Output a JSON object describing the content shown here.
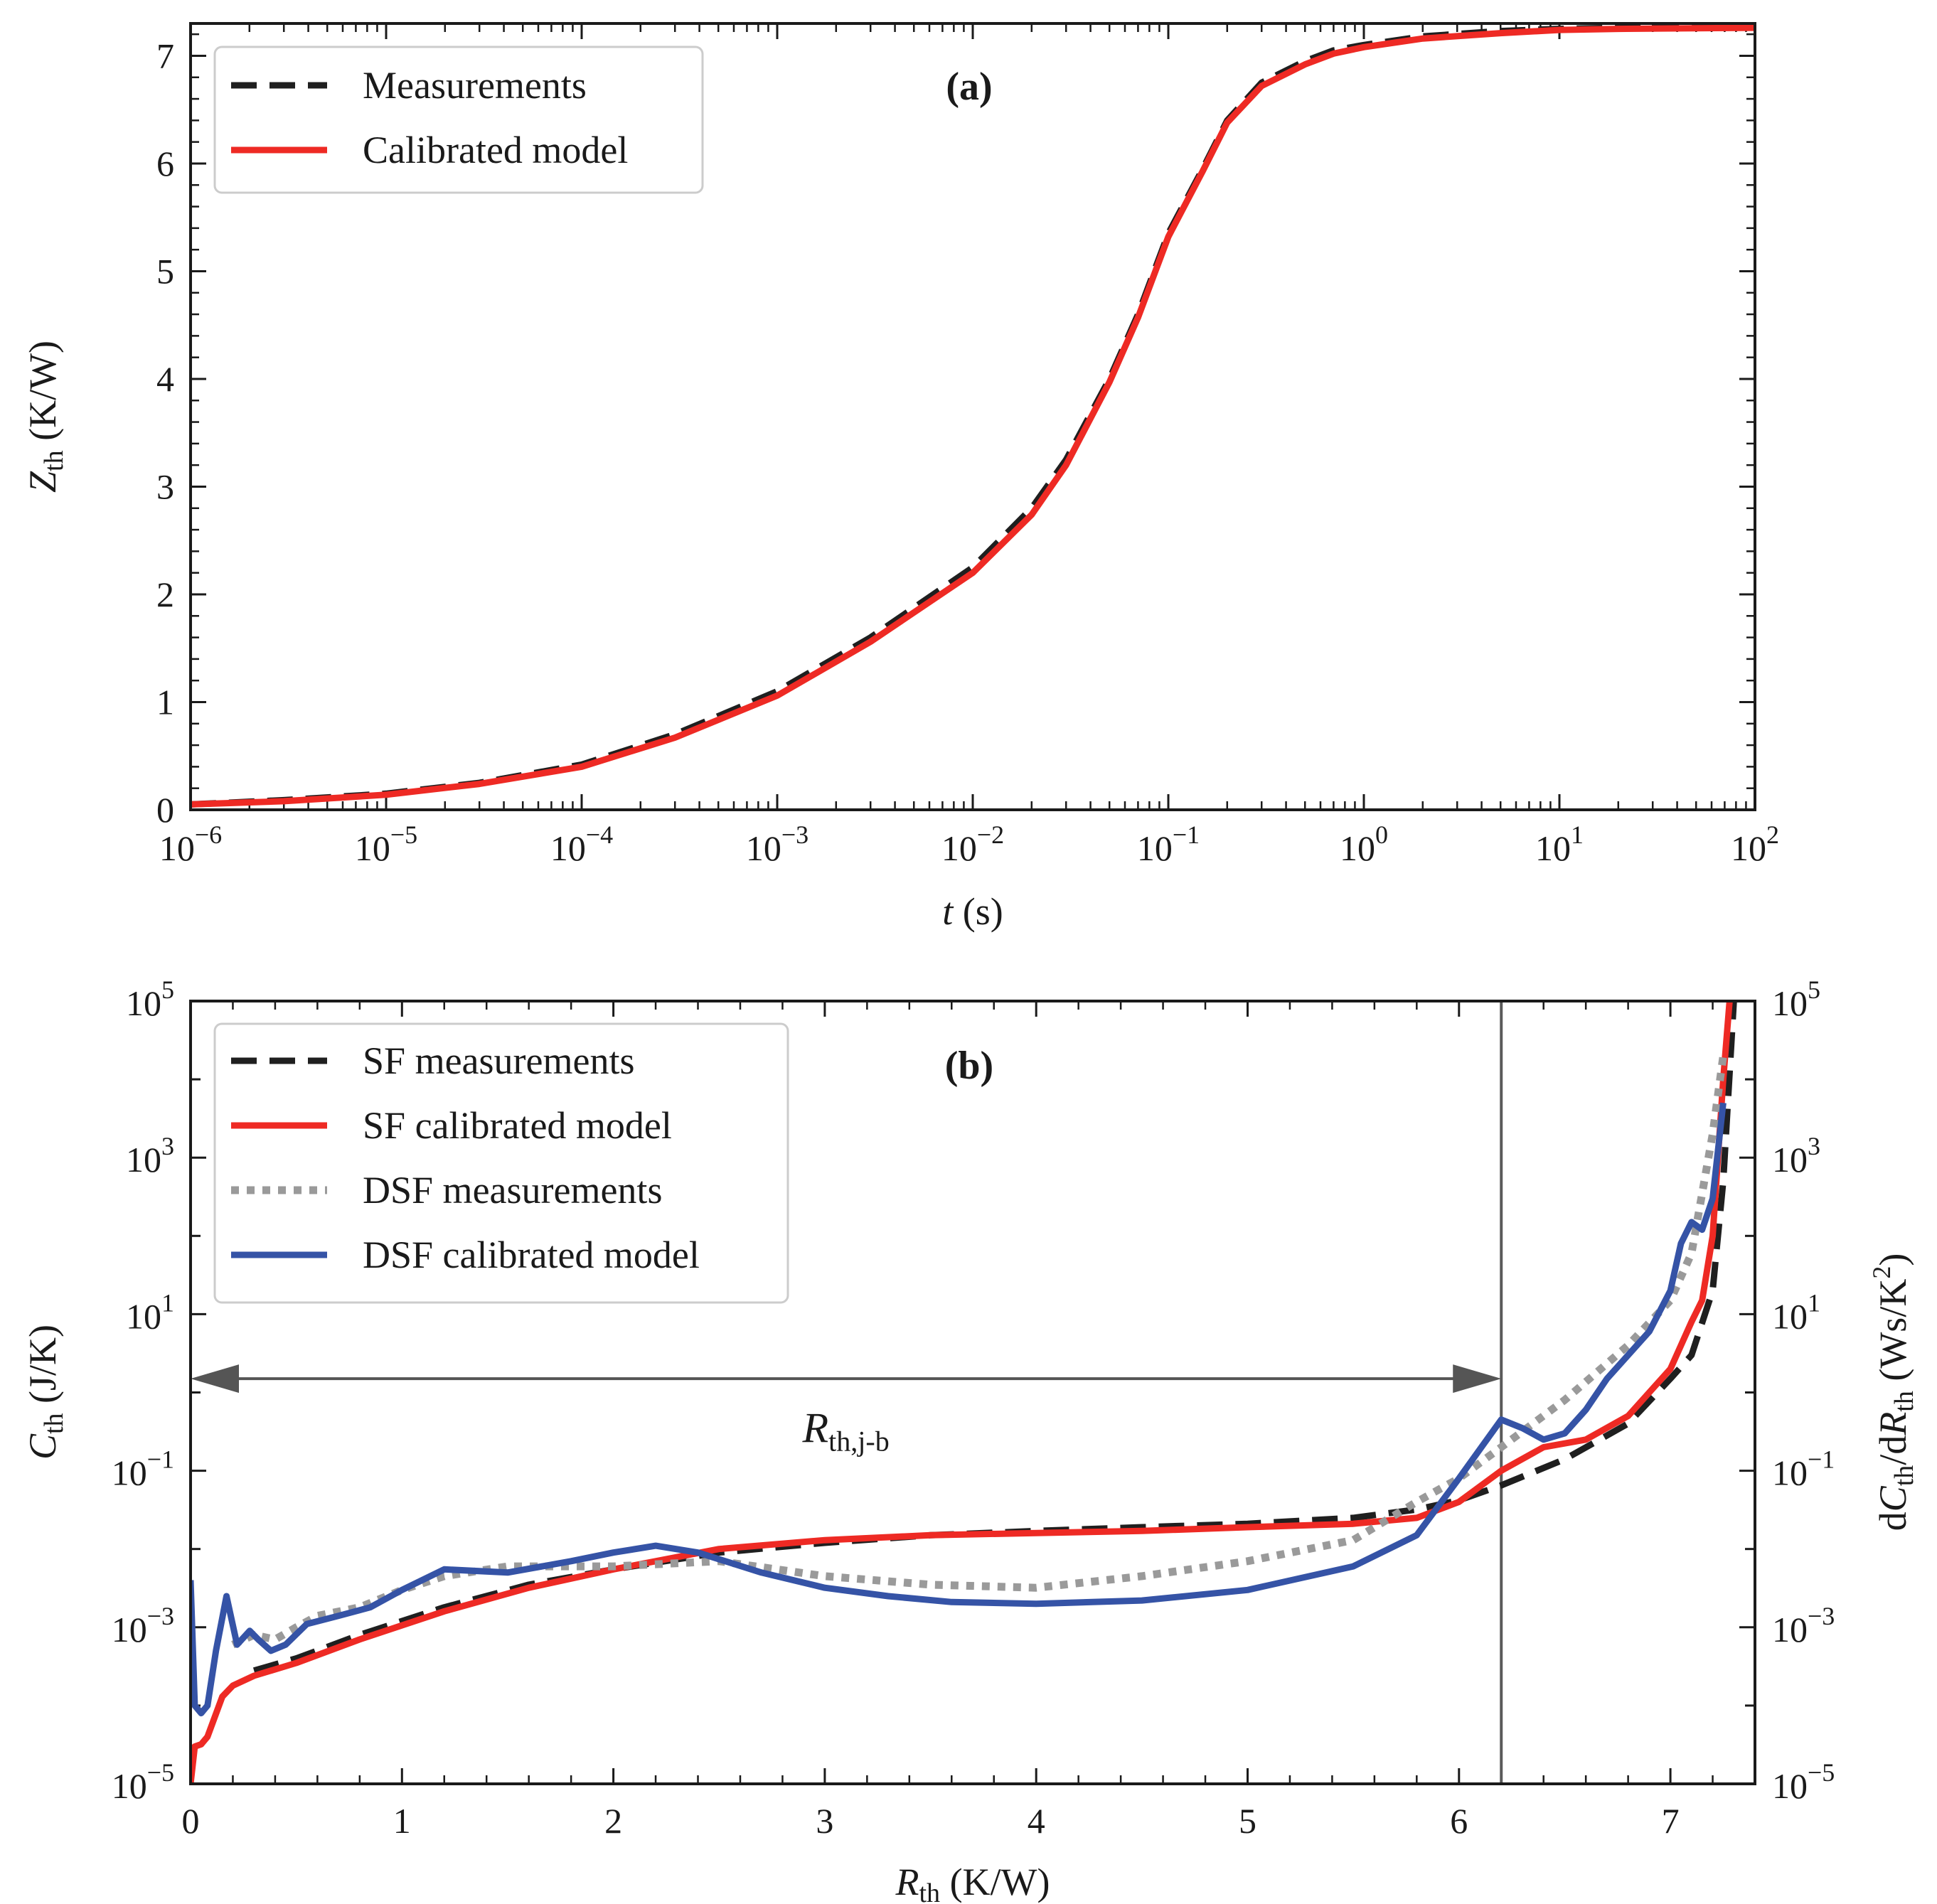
{
  "chart_data": [
    {
      "type": "line",
      "panel_label": "(a)",
      "xlabel": {
        "main": "t",
        "rest": " (s)"
      },
      "ylabel": {
        "main": "Z",
        "sub": "th",
        "rest": " (K/W)"
      },
      "xscale": "log",
      "xlim": [
        1e-06,
        100
      ],
      "ylim": [
        0,
        7.3
      ],
      "xticks": [
        {
          "value": 1e-06,
          "base": "10",
          "exp": "−6"
        },
        {
          "value": 1e-05,
          "base": "10",
          "exp": "−5"
        },
        {
          "value": 0.0001,
          "base": "10",
          "exp": "−4"
        },
        {
          "value": 0.001,
          "base": "10",
          "exp": "−3"
        },
        {
          "value": 0.01,
          "base": "10",
          "exp": "−2"
        },
        {
          "value": 0.1,
          "base": "10",
          "exp": "−1"
        },
        {
          "value": 1,
          "base": "10",
          "exp": "0"
        },
        {
          "value": 10,
          "base": "10",
          "exp": "1"
        },
        {
          "value": 100,
          "base": "10",
          "exp": "2"
        }
      ],
      "yticks": [
        {
          "value": 0,
          "label": "0"
        },
        {
          "value": 1,
          "label": "1"
        },
        {
          "value": 2,
          "label": "2"
        },
        {
          "value": 3,
          "label": "3"
        },
        {
          "value": 4,
          "label": "4"
        },
        {
          "value": 5,
          "label": "5"
        },
        {
          "value": 6,
          "label": "6"
        },
        {
          "value": 7,
          "label": "7"
        }
      ],
      "legend": {
        "placement": "top-left"
      },
      "series": [
        {
          "name": "Measurements",
          "color": "#1f1f1f",
          "style": "dashed",
          "x": [
            1e-06,
            3e-06,
            1e-05,
            3e-05,
            0.0001,
            0.0003,
            0.001,
            0.003,
            0.01,
            0.02,
            0.03,
            0.05,
            0.07,
            0.1,
            0.15,
            0.2,
            0.3,
            0.5,
            0.7,
            1,
            2,
            5,
            10,
            20,
            100
          ],
          "y": [
            0.05,
            0.09,
            0.15,
            0.25,
            0.42,
            0.7,
            1.1,
            1.6,
            2.25,
            2.8,
            3.25,
            4.0,
            4.6,
            5.35,
            5.95,
            6.4,
            6.75,
            6.95,
            7.05,
            7.1,
            7.18,
            7.23,
            7.25,
            7.26,
            7.27
          ]
        },
        {
          "name": "Calibrated model",
          "color": "#ee2a24",
          "style": "solid",
          "x": [
            1e-06,
            3e-06,
            1e-05,
            3e-05,
            0.0001,
            0.0003,
            0.001,
            0.003,
            0.01,
            0.02,
            0.03,
            0.05,
            0.07,
            0.1,
            0.15,
            0.2,
            0.3,
            0.5,
            0.7,
            1,
            2,
            5,
            10,
            20,
            100
          ],
          "y": [
            0.05,
            0.08,
            0.14,
            0.24,
            0.4,
            0.67,
            1.06,
            1.56,
            2.2,
            2.74,
            3.2,
            3.97,
            4.57,
            5.32,
            5.93,
            6.38,
            6.72,
            6.92,
            7.02,
            7.08,
            7.16,
            7.21,
            7.24,
            7.25,
            7.26
          ]
        }
      ]
    },
    {
      "type": "line",
      "panel_label": "(b)",
      "xlabel": {
        "main": "R",
        "sub": "th",
        "rest": " (K/W)"
      },
      "ylabel": {
        "main": "C",
        "sub": "th",
        "rest": " (J/K)"
      },
      "ylabel_right": {
        "p1": "d",
        "m1": "C",
        "s1": "th",
        "p2": "/d",
        "m2": "R",
        "s2": "th",
        "p3": " (Ws/K",
        "sup": "2",
        "p4": ")"
      },
      "yscale": "log",
      "xlim": [
        0,
        7.4
      ],
      "ylim": [
        1e-05,
        100000.0
      ],
      "xticks": [
        {
          "value": 0,
          "label": "0"
        },
        {
          "value": 1,
          "label": "1"
        },
        {
          "value": 2,
          "label": "2"
        },
        {
          "value": 3,
          "label": "3"
        },
        {
          "value": 4,
          "label": "4"
        },
        {
          "value": 5,
          "label": "5"
        },
        {
          "value": 6,
          "label": "6"
        },
        {
          "value": 7,
          "label": "7"
        }
      ],
      "yticks": [
        {
          "value": 1e-05,
          "base": "10",
          "exp": "−5"
        },
        {
          "value": 0.001,
          "base": "10",
          "exp": "−3"
        },
        {
          "value": 0.1,
          "base": "10",
          "exp": "−1"
        },
        {
          "value": 10,
          "base": "10",
          "exp": "1"
        },
        {
          "value": 1000,
          "base": "10",
          "exp": "3"
        },
        {
          "value": 100000,
          "base": "10",
          "exp": "5"
        }
      ],
      "legend": {
        "placement": "top-left"
      },
      "vline_x": 6.2,
      "annotation": {
        "arrow_x": [
          0,
          6.2
        ],
        "arrow_y": 1.5,
        "label_main": "R",
        "label_sub": "th,j-b",
        "label_x": 3.1,
        "label_y": 0.35
      },
      "series": [
        {
          "name": "SF measurements",
          "color": "#1f1f1f",
          "style": "dashed",
          "x": [
            0.3,
            0.5,
            0.8,
            1.2,
            1.6,
            2.0,
            2.5,
            3.0,
            3.5,
            4.0,
            4.5,
            5.0,
            5.5,
            5.8,
            6.0,
            6.2,
            6.5,
            6.8,
            7.0,
            7.1,
            7.2,
            7.25,
            7.3
          ],
          "y": [
            0.00028,
            0.0004,
            0.0008,
            0.0018,
            0.0035,
            0.0055,
            0.009,
            0.012,
            0.015,
            0.017,
            0.019,
            0.021,
            0.025,
            0.032,
            0.042,
            0.065,
            0.14,
            0.4,
            1.5,
            3,
            20,
            500,
            100000
          ]
        },
        {
          "name": "SF calibrated model",
          "color": "#ee2a24",
          "style": "solid",
          "x": [
            0,
            0.02,
            0.05,
            0.08,
            0.15,
            0.2,
            0.3,
            0.5,
            0.8,
            1.2,
            1.6,
            2.0,
            2.5,
            3.0,
            3.5,
            4.0,
            4.5,
            5.0,
            5.5,
            5.8,
            6.0,
            6.2,
            6.4,
            6.6,
            6.8,
            7.0,
            7.1,
            7.15,
            7.2,
            7.25,
            7.28
          ],
          "y": [
            1e-05,
            3e-05,
            3.2e-05,
            4e-05,
            0.00013,
            0.00018,
            0.00024,
            0.00035,
            0.0007,
            0.0016,
            0.0032,
            0.0055,
            0.01,
            0.013,
            0.015,
            0.016,
            0.017,
            0.019,
            0.021,
            0.025,
            0.04,
            0.1,
            0.2,
            0.25,
            0.5,
            2,
            8,
            15,
            100,
            10000,
            100000
          ]
        },
        {
          "name": "DSF measurements",
          "color": "#9a9a9a",
          "style": "dotted",
          "x": [
            0.2,
            0.3,
            0.4,
            0.5,
            0.6,
            0.8,
            1.0,
            1.2,
            1.5,
            2.0,
            2.5,
            3.0,
            3.5,
            4.0,
            4.5,
            5.0,
            5.5,
            5.8,
            6.0,
            6.2,
            6.5,
            6.8,
            7.0,
            7.1,
            7.2,
            7.25
          ],
          "y": [
            0.0006,
            0.0008,
            0.0007,
            0.001,
            0.0014,
            0.0018,
            0.003,
            0.0045,
            0.006,
            0.006,
            0.007,
            0.0045,
            0.0035,
            0.0032,
            0.0045,
            0.007,
            0.013,
            0.04,
            0.08,
            0.2,
            0.8,
            4,
            15,
            60,
            2000,
            20000
          ]
        },
        {
          "name": "DSF calibrated model",
          "color": "#3553a6",
          "style": "solid",
          "x": [
            0,
            0.02,
            0.05,
            0.08,
            0.12,
            0.17,
            0.22,
            0.28,
            0.32,
            0.38,
            0.45,
            0.55,
            0.7,
            0.85,
            1.0,
            1.2,
            1.5,
            1.8,
            2.0,
            2.2,
            2.4,
            2.7,
            3.0,
            3.3,
            3.6,
            4.0,
            4.5,
            5.0,
            5.5,
            5.8,
            6.0,
            6.2,
            6.3,
            6.4,
            6.5,
            6.6,
            6.7,
            6.8,
            6.9,
            7.0,
            7.05,
            7.1,
            7.15,
            7.2,
            7.25
          ],
          "y": [
            0.004,
            0.0001,
            8e-05,
            0.0001,
            0.0005,
            0.0025,
            0.0006,
            0.0009,
            0.0007,
            0.0005,
            0.0006,
            0.0011,
            0.0014,
            0.0018,
            0.003,
            0.0055,
            0.005,
            0.007,
            0.009,
            0.011,
            0.009,
            0.005,
            0.0032,
            0.0025,
            0.0021,
            0.002,
            0.0022,
            0.003,
            0.006,
            0.015,
            0.08,
            0.45,
            0.35,
            0.25,
            0.3,
            0.6,
            1.5,
            3,
            6,
            20,
            80,
            150,
            120,
            300,
            5000
          ]
        }
      ]
    }
  ]
}
